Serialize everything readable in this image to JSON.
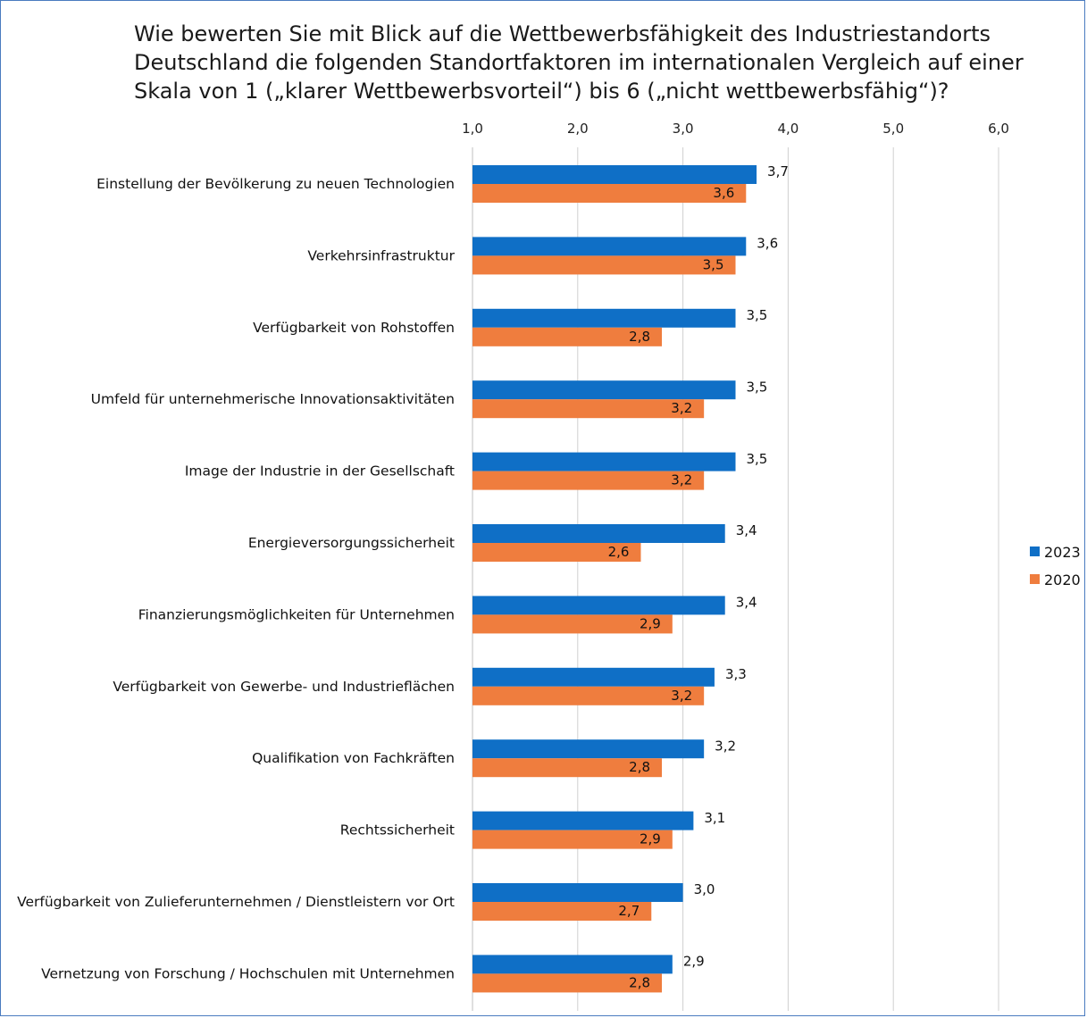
{
  "chart_data": {
    "type": "bar",
    "orientation": "horizontal",
    "title": "Wie bewerten Sie mit Blick auf die Wettbewerbsfähigkeit des Industriestandorts\nDeutschland die folgenden Standortfaktoren im internationalen Vergleich auf einer\nSkala von 1 („klarer Wettbewerbsvorteil“) bis 6 („nicht wettbewerbsfähig“)?",
    "xlim": [
      1,
      6
    ],
    "ticks": [
      "1,0",
      "2,0",
      "3,0",
      "4,0",
      "5,0",
      "6,0"
    ],
    "tick_values": [
      1,
      2,
      3,
      4,
      5,
      6
    ],
    "grid": true,
    "legend_position": "right",
    "categories": [
      "Einstellung der Bevölkerung zu neuen Technologien",
      "Verkehrsinfrastruktur",
      "Verfügbarkeit von Rohstoffen",
      "Umfeld für unternehmerische Innovationsaktivitäten",
      "Image der Industrie in der Gesellschaft",
      "Energieversorgungssicherheit",
      "Finanzierungsmöglichkeiten für Unternehmen",
      "Verfügbarkeit von Gewerbe- und Industrieflächen",
      "Qualifikation von Fachkräften",
      "Rechtssicherheit",
      "Verfügbarkeit von Zulieferunternehmen / Dienstleistern vor Ort",
      "Vernetzung von Forschung / Hochschulen mit Unternehmen"
    ],
    "series": [
      {
        "name": "2023",
        "color": "#0f6fc6",
        "values": [
          3.7,
          3.6,
          3.5,
          3.5,
          3.5,
          3.4,
          3.4,
          3.3,
          3.2,
          3.1,
          3.0,
          2.9
        ],
        "labels": [
          "3,7",
          "3,6",
          "3,5",
          "3,5",
          "3,5",
          "3,4",
          "3,4",
          "3,3",
          "3,2",
          "3,1",
          "3,0",
          "2,9"
        ]
      },
      {
        "name": "2020",
        "color": "#ef7d3e",
        "values": [
          3.6,
          3.5,
          2.8,
          3.2,
          3.2,
          2.6,
          2.9,
          3.2,
          2.8,
          2.9,
          2.7,
          2.8
        ],
        "labels": [
          "3,6",
          "3,5",
          "2,8",
          "3,2",
          "3,2",
          "2,6",
          "2,9",
          "3,2",
          "2,8",
          "2,9",
          "2,7",
          "2,8"
        ]
      }
    ]
  }
}
